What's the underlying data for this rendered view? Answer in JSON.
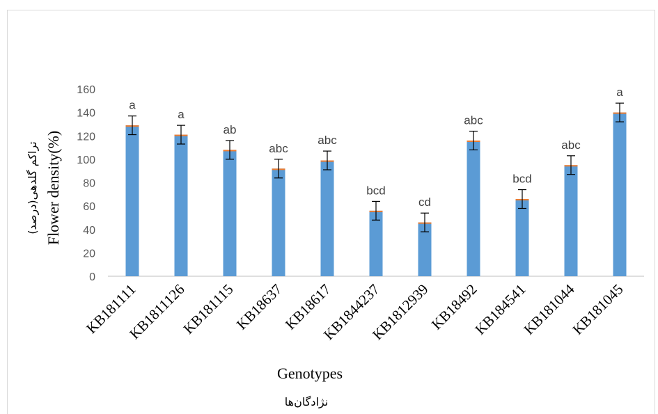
{
  "chart_data": {
    "type": "bar",
    "categories": [
      "KB181111",
      "KB1811126",
      "KB181115",
      "KB18637",
      "KB18617",
      "KB1844237",
      "KB1812939",
      "KB18492",
      "KB184541",
      "KB181044",
      "KB181045"
    ],
    "values": [
      129,
      121,
      108,
      92,
      99,
      56,
      46,
      116,
      66,
      95,
      140
    ],
    "errors": [
      8,
      8,
      8,
      8,
      8,
      8,
      8,
      8,
      8,
      8,
      8
    ],
    "labels": [
      "a",
      "a",
      "ab",
      "abc",
      "abc",
      "bcd",
      "cd",
      "abc",
      "bcd",
      "abc",
      "a"
    ],
    "xlabel": "Genotypes",
    "xlabel_fa": "نژادگان‌ها",
    "ylabel": "Flower density(%)",
    "ylabel_fa": "تراکم گلدهی(درصد)",
    "ylim": [
      0,
      160
    ],
    "yticks": [
      "0",
      "20",
      "40",
      "60",
      "80",
      "100",
      "120",
      "140",
      "160"
    ],
    "grid": false,
    "bar_color": "#5b9bd5",
    "bar_top_color": "#ed7d31"
  }
}
